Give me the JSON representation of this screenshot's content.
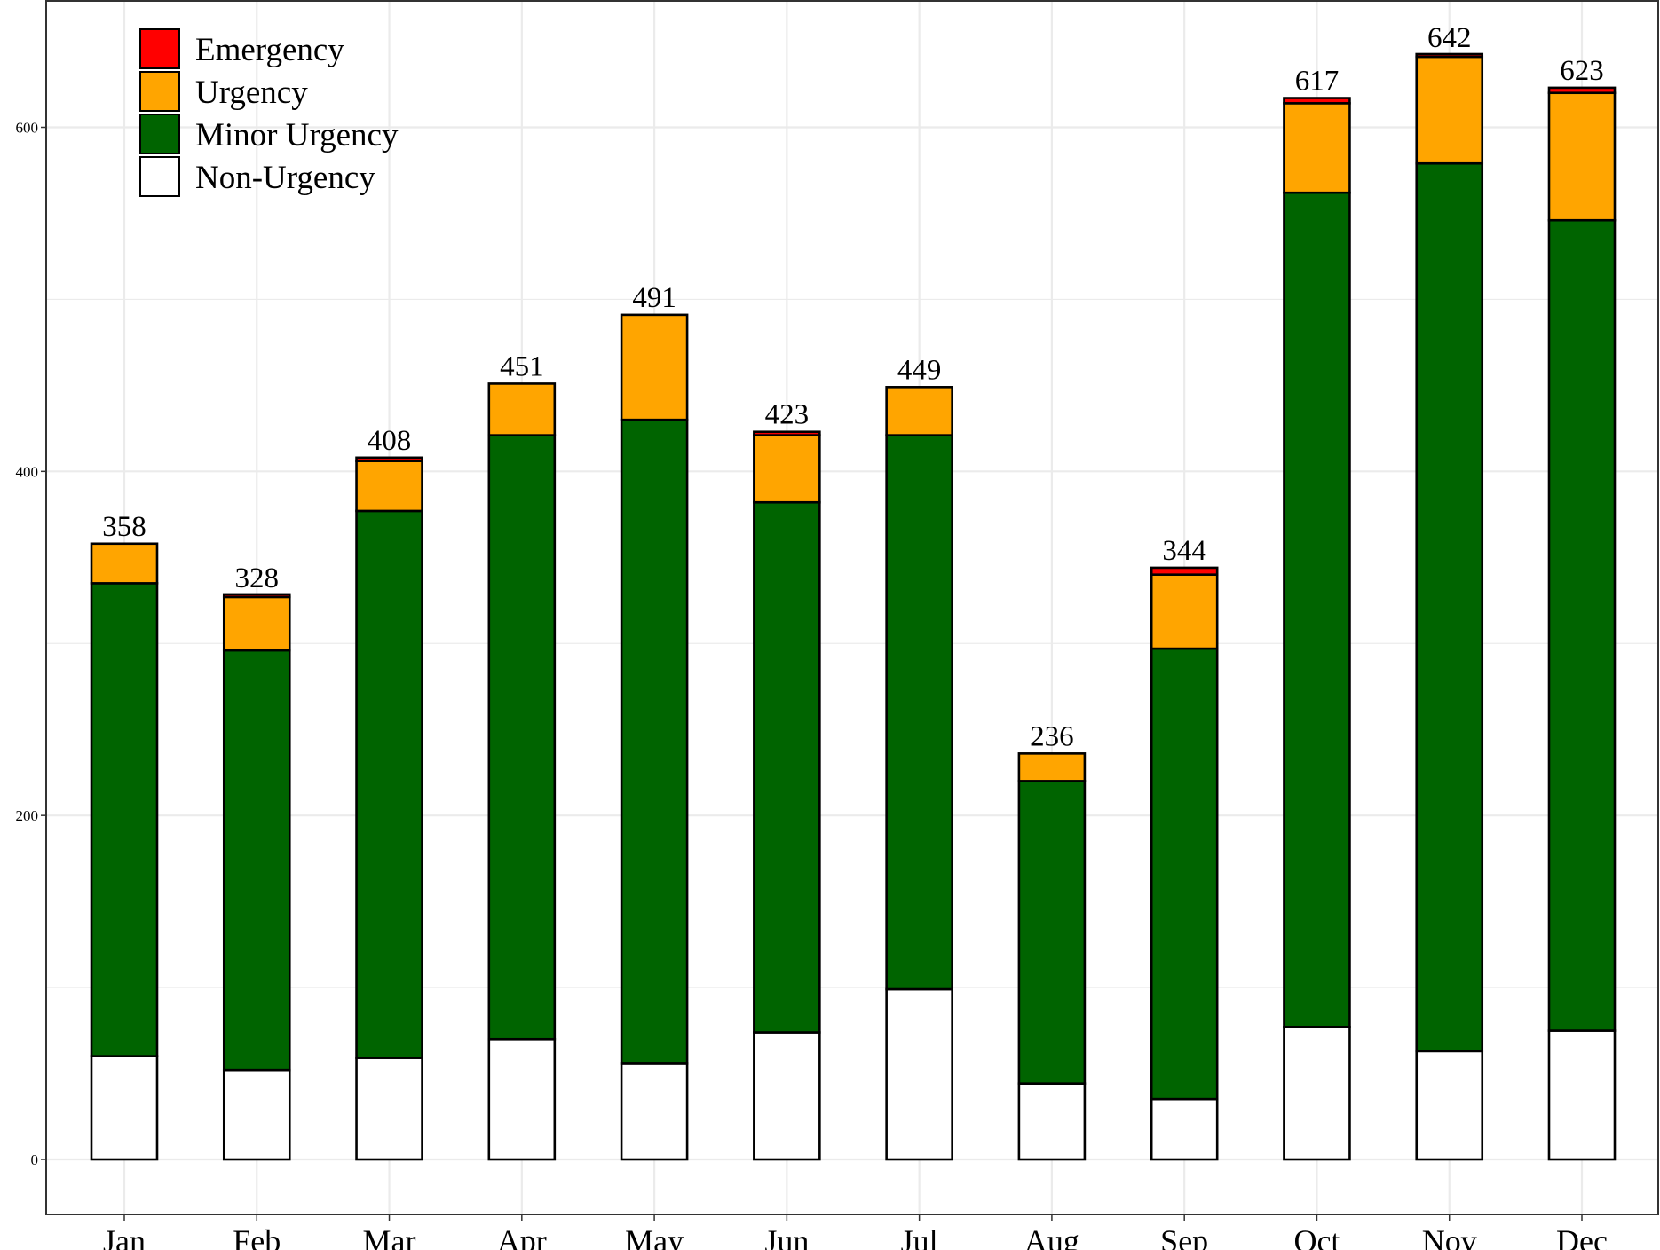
{
  "chart_data": {
    "type": "bar",
    "stacked": true,
    "title": "",
    "xlabel": "",
    "ylabel": "",
    "ylim": [
      -30,
      672
    ],
    "yticks": [
      0,
      200,
      400,
      600
    ],
    "grid": true,
    "legend_position": "top-left",
    "categories": [
      "Jan",
      "Feb",
      "Mar",
      "Apr",
      "May",
      "Jun",
      "Jul",
      "Aug",
      "Sep",
      "Oct",
      "Nov",
      "Dec"
    ],
    "series": [
      {
        "name": "Non-Urgency",
        "color": "#ffffff",
        "values": [
          60,
          52,
          59,
          70,
          56,
          74,
          99,
          44,
          35,
          77,
          63,
          75
        ]
      },
      {
        "name": "Minor Urgency",
        "color": "#006400",
        "values": [
          275,
          244,
          318,
          351,
          374,
          308,
          322,
          176,
          262,
          485,
          516,
          471
        ]
      },
      {
        "name": "Urgency",
        "color": "#ffa500",
        "values": [
          23,
          31,
          29,
          30,
          61,
          39,
          28,
          16,
          43,
          52,
          62,
          74
        ]
      },
      {
        "name": "Emergency",
        "color": "#ff0000",
        "values": [
          0,
          1,
          2,
          0,
          0,
          2,
          0,
          0,
          4,
          3,
          1,
          3
        ]
      }
    ],
    "totals": [
      358,
      328,
      408,
      451,
      491,
      423,
      449,
      236,
      344,
      617,
      642,
      623
    ],
    "legend_order": [
      "Emergency",
      "Urgency",
      "Minor Urgency",
      "Non-Urgency"
    ]
  }
}
